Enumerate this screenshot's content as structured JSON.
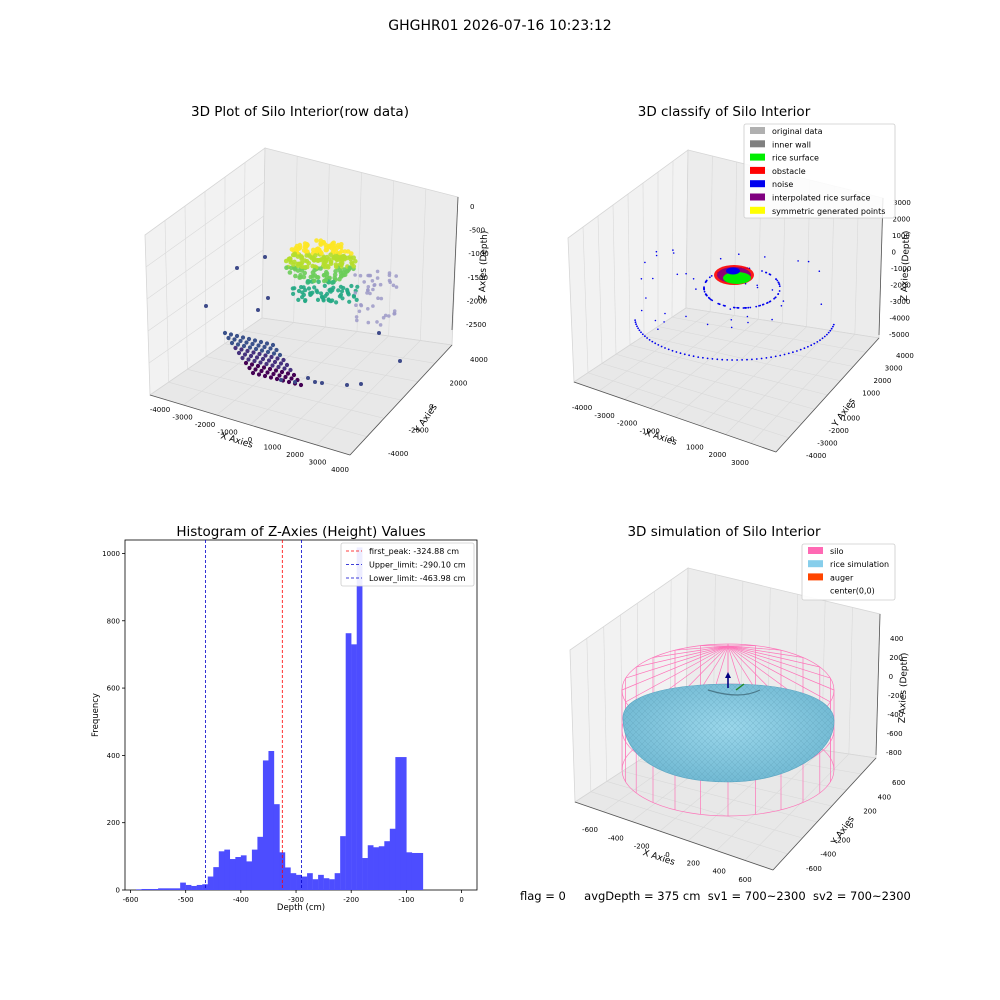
{
  "figure": {
    "suptitle": "GHGHR01 2026-07-16 10:23:12",
    "footer": {
      "flag": "flag = 0",
      "avgDepth": "avgDepth = 375 cm",
      "sv1": "sv1 = 700~2300",
      "sv2": "sv2 = 700~2300"
    }
  },
  "chart_data": [
    {
      "type": "scatter",
      "projection": "3d",
      "title": "3D Plot of Silo Interior(row data)",
      "xlabel": "X Axies",
      "ylabel": "Y Axies",
      "zlabel": "Z Axies (Depth)",
      "xticks": [
        "-4000",
        "-3000",
        "-2000",
        "-1000",
        "0",
        "1000",
        "2000",
        "3000",
        "4000"
      ],
      "yticks": [
        "-4000",
        "-2000",
        "0",
        "2000",
        "4000"
      ],
      "zticks": [
        "0",
        "-500",
        "-1000",
        "-1500",
        "-2000",
        "-2500"
      ],
      "colormap": "viridis",
      "grid": true
    },
    {
      "type": "scatter",
      "projection": "3d",
      "title": "3D classify of Silo Interior",
      "xlabel": "X Axies",
      "ylabel": "Y Axies",
      "zlabel": "Z Axies (Depth)",
      "xticks": [
        "-4000",
        "-3000",
        "-2000",
        "-1000",
        "0",
        "1000",
        "2000",
        "3000"
      ],
      "yticks": [
        "-4000",
        "-3000",
        "-2000",
        "-1000",
        "0",
        "1000",
        "2000",
        "3000",
        "4000"
      ],
      "zticks": [
        "3000",
        "2000",
        "1000",
        "0",
        "-1000",
        "-2000",
        "-3000",
        "-4000",
        "-5000"
      ],
      "legend": {
        "position": "top-right",
        "items": [
          {
            "label": "original data",
            "color": "#b0b0b0"
          },
          {
            "label": "inner wall",
            "color": "#808080"
          },
          {
            "label": "rice surface",
            "color": "#00ee00"
          },
          {
            "label": "obstacle",
            "color": "#ff0000"
          },
          {
            "label": "noise",
            "color": "#0000ee"
          },
          {
            "label": "interpolated rice surface",
            "color": "#800080"
          },
          {
            "label": "symmetric generated points",
            "color": "#ffff00"
          }
        ]
      },
      "grid": true
    },
    {
      "type": "bar",
      "subtype": "histogram",
      "title": "Histogram of Z-Axies (Height) Values",
      "xlabel": "Depth (cm)",
      "ylabel": "Frequency",
      "xlim": [
        -610,
        28
      ],
      "ylim": [
        0,
        1040
      ],
      "bar_color": "#4d4dff",
      "bins": [
        {
          "x0": -590,
          "x1": -580,
          "y": 2
        },
        {
          "x0": -580,
          "x1": -570,
          "y": 3
        },
        {
          "x0": -570,
          "x1": -560,
          "y": 3
        },
        {
          "x0": -560,
          "x1": -550,
          "y": 3
        },
        {
          "x0": -550,
          "x1": -540,
          "y": 5
        },
        {
          "x0": -540,
          "x1": -530,
          "y": 5
        },
        {
          "x0": -530,
          "x1": -520,
          "y": 5
        },
        {
          "x0": -520,
          "x1": -510,
          "y": 5
        },
        {
          "x0": -510,
          "x1": -500,
          "y": 22
        },
        {
          "x0": -500,
          "x1": -490,
          "y": 15
        },
        {
          "x0": -490,
          "x1": -480,
          "y": 12
        },
        {
          "x0": -480,
          "x1": -470,
          "y": 15
        },
        {
          "x0": -470,
          "x1": -460,
          "y": 17
        },
        {
          "x0": -460,
          "x1": -450,
          "y": 40
        },
        {
          "x0": -450,
          "x1": -440,
          "y": 68
        },
        {
          "x0": -440,
          "x1": -430,
          "y": 115
        },
        {
          "x0": -430,
          "x1": -420,
          "y": 120
        },
        {
          "x0": -420,
          "x1": -410,
          "y": 92
        },
        {
          "x0": -410,
          "x1": -400,
          "y": 98
        },
        {
          "x0": -400,
          "x1": -390,
          "y": 103
        },
        {
          "x0": -390,
          "x1": -380,
          "y": 85
        },
        {
          "x0": -380,
          "x1": -370,
          "y": 120
        },
        {
          "x0": -370,
          "x1": -360,
          "y": 158
        },
        {
          "x0": -360,
          "x1": -350,
          "y": 385
        },
        {
          "x0": -350,
          "x1": -340,
          "y": 413
        },
        {
          "x0": -340,
          "x1": -330,
          "y": 255
        },
        {
          "x0": -330,
          "x1": -320,
          "y": 112
        },
        {
          "x0": -320,
          "x1": -310,
          "y": 67
        },
        {
          "x0": -310,
          "x1": -300,
          "y": 50
        },
        {
          "x0": -300,
          "x1": -290,
          "y": 45
        },
        {
          "x0": -290,
          "x1": -280,
          "y": 40
        },
        {
          "x0": -280,
          "x1": -270,
          "y": 50
        },
        {
          "x0": -270,
          "x1": -260,
          "y": 32
        },
        {
          "x0": -260,
          "x1": -250,
          "y": 45
        },
        {
          "x0": -250,
          "x1": -240,
          "y": 35
        },
        {
          "x0": -240,
          "x1": -230,
          "y": 32
        },
        {
          "x0": -230,
          "x1": -220,
          "y": 50
        },
        {
          "x0": -220,
          "x1": -210,
          "y": 160
        },
        {
          "x0": -210,
          "x1": -200,
          "y": 763
        },
        {
          "x0": -200,
          "x1": -190,
          "y": 730
        },
        {
          "x0": -190,
          "x1": -180,
          "y": 1018
        },
        {
          "x0": -180,
          "x1": -170,
          "y": 95
        },
        {
          "x0": -170,
          "x1": -160,
          "y": 133
        },
        {
          "x0": -160,
          "x1": -150,
          "y": 127
        },
        {
          "x0": -150,
          "x1": -140,
          "y": 130
        },
        {
          "x0": -140,
          "x1": -130,
          "y": 145
        },
        {
          "x0": -130,
          "x1": -120,
          "y": 182
        },
        {
          "x0": -120,
          "x1": -110,
          "y": 395
        },
        {
          "x0": -110,
          "x1": -100,
          "y": 395
        },
        {
          "x0": -100,
          "x1": -90,
          "y": 112
        },
        {
          "x0": -90,
          "x1": -80,
          "y": 110
        },
        {
          "x0": -80,
          "x1": -70,
          "y": 110
        }
      ],
      "vlines": [
        {
          "label": "first_peak: -324.88 cm",
          "x": -324.88,
          "color": "#ff0000"
        },
        {
          "label": "Upper_limit: -290.10 cm",
          "x": -290.1,
          "color": "#0000cc"
        },
        {
          "label": "Lower_limit: -463.98 cm",
          "x": -463.98,
          "color": "#0000cc"
        }
      ],
      "xticks": [
        "-600",
        "-500",
        "-400",
        "-300",
        "-200",
        "-100",
        "0"
      ],
      "yticks": [
        "0",
        "200",
        "400",
        "600",
        "800",
        "1000"
      ],
      "legend": {
        "position": "top-right"
      }
    },
    {
      "type": "surface",
      "projection": "3d",
      "title": "3D simulation of Silo Interior",
      "xlabel": "X Axies",
      "ylabel": "Y Axies",
      "zlabel": "Z Axies (Depth)",
      "xticks": [
        "-600",
        "-400",
        "-200",
        "0",
        "200",
        "400",
        "600"
      ],
      "yticks": [
        "-600",
        "-400",
        "-200",
        "0",
        "200",
        "400",
        "600"
      ],
      "zticks": [
        "400",
        "200",
        "0",
        "-200",
        "-400",
        "-600",
        "-800"
      ],
      "legend": {
        "position": "top-right",
        "items": [
          {
            "label": "silo",
            "color": "#ff69b4"
          },
          {
            "label": "rice simulation",
            "color": "#87ceeb"
          },
          {
            "label": "auger",
            "color": "#ff4500"
          },
          {
            "label": "center(0,0)",
            "color": "#ffffff"
          }
        ]
      },
      "grid": true
    }
  ]
}
